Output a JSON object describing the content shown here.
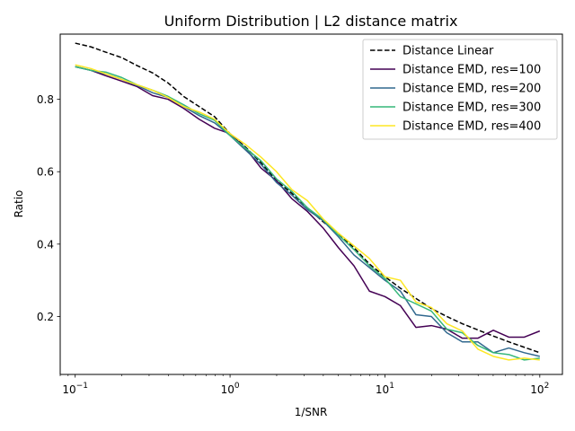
{
  "chart_data": {
    "type": "line",
    "title": "Uniform Distribution | L2 distance matrix",
    "xlabel": "1/SNR",
    "ylabel": "Ratio",
    "xscale": "log",
    "xlim": [
      0.08,
      140
    ],
    "ylim": [
      0.04,
      0.98
    ],
    "xticks": [
      {
        "value": 0.1,
        "base": "10",
        "exp": "−1"
      },
      {
        "value": 1,
        "base": "10",
        "exp": "0"
      },
      {
        "value": 10,
        "base": "10",
        "exp": "1"
      },
      {
        "value": 100,
        "base": "10",
        "exp": "2"
      }
    ],
    "yticks": [
      {
        "value": 0.2,
        "label": "0.2"
      },
      {
        "value": 0.4,
        "label": "0.4"
      },
      {
        "value": 0.6,
        "label": "0.6"
      },
      {
        "value": 0.8,
        "label": "0.8"
      }
    ],
    "legend_position": "top-right",
    "x": [
      0.1,
      0.126,
      0.158,
      0.2,
      0.251,
      0.316,
      0.398,
      0.501,
      0.631,
      0.794,
      1.0,
      1.259,
      1.585,
      1.995,
      2.512,
      3.162,
      3.981,
      5.012,
      6.31,
      7.943,
      10.0,
      12.59,
      15.85,
      19.95,
      25.12,
      31.62,
      39.81,
      50.12,
      63.1,
      79.43,
      100
    ],
    "series": [
      {
        "name": "Distance Linear",
        "color": "#000000",
        "dash": true,
        "values": [
          0.955,
          0.945,
          0.93,
          0.915,
          0.893,
          0.873,
          0.845,
          0.808,
          0.78,
          0.752,
          0.705,
          0.668,
          0.625,
          0.575,
          0.54,
          0.5,
          0.462,
          0.428,
          0.39,
          0.345,
          0.31,
          0.278,
          0.25,
          0.222,
          0.2,
          0.18,
          0.163,
          0.146,
          0.13,
          0.115,
          0.1
        ]
      },
      {
        "name": "Distance EMD, res=100",
        "color": "#440154",
        "dash": false,
        "values": [
          0.89,
          0.88,
          0.865,
          0.85,
          0.835,
          0.81,
          0.8,
          0.775,
          0.745,
          0.72,
          0.705,
          0.665,
          0.61,
          0.575,
          0.525,
          0.49,
          0.445,
          0.39,
          0.34,
          0.27,
          0.255,
          0.23,
          0.17,
          0.175,
          0.165,
          0.14,
          0.14,
          0.162,
          0.143,
          0.143,
          0.16
        ]
      },
      {
        "name": "Distance EMD, res=200",
        "color": "#31688e",
        "dash": false,
        "values": [
          0.89,
          0.88,
          0.87,
          0.855,
          0.838,
          0.818,
          0.805,
          0.78,
          0.755,
          0.735,
          0.7,
          0.66,
          0.62,
          0.57,
          0.535,
          0.495,
          0.465,
          0.42,
          0.37,
          0.335,
          0.3,
          0.27,
          0.205,
          0.2,
          0.155,
          0.13,
          0.13,
          0.1,
          0.113,
          0.1,
          0.09
        ]
      },
      {
        "name": "Distance EMD, res=300",
        "color": "#35b779",
        "dash": false,
        "values": [
          0.89,
          0.88,
          0.875,
          0.86,
          0.84,
          0.825,
          0.808,
          0.785,
          0.76,
          0.742,
          0.7,
          0.665,
          0.63,
          0.58,
          0.545,
          0.5,
          0.468,
          0.425,
          0.385,
          0.34,
          0.305,
          0.255,
          0.235,
          0.215,
          0.165,
          0.155,
          0.12,
          0.1,
          0.095,
          0.08,
          0.085
        ]
      },
      {
        "name": "Distance EMD, res=400",
        "color": "#fde725",
        "dash": false,
        "values": [
          0.895,
          0.885,
          0.87,
          0.855,
          0.84,
          0.825,
          0.805,
          0.78,
          0.765,
          0.745,
          0.705,
          0.675,
          0.64,
          0.6,
          0.55,
          0.52,
          0.47,
          0.43,
          0.395,
          0.36,
          0.31,
          0.3,
          0.24,
          0.225,
          0.18,
          0.16,
          0.11,
          0.09,
          0.08,
          0.085,
          0.08
        ]
      }
    ]
  }
}
